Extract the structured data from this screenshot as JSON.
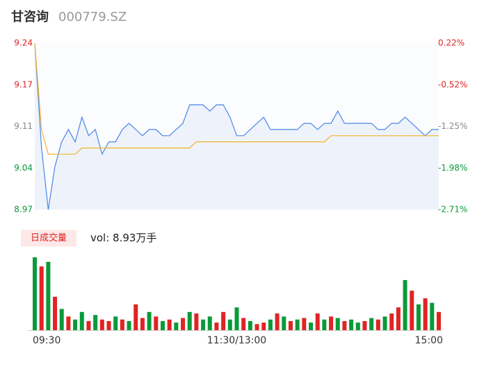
{
  "chart_data": [
    {
      "type": "line",
      "title": "甘咨询",
      "subtitle": "000779.SZ",
      "x": [
        0,
        4,
        8,
        12,
        16,
        20,
        24,
        28,
        32,
        36,
        40,
        44,
        48,
        52,
        56,
        60,
        64,
        68,
        72,
        76,
        80,
        84,
        88,
        92,
        96,
        100,
        104,
        108,
        112,
        116,
        120,
        124,
        128,
        132,
        136,
        140,
        144,
        148,
        152,
        156,
        160,
        164,
        168,
        172,
        176,
        180,
        184,
        188,
        192,
        196,
        200,
        204,
        208,
        212,
        216,
        220,
        224,
        228,
        232,
        236,
        240
      ],
      "xlim": [
        0,
        240
      ],
      "ylim": [
        8.97,
        9.24
      ],
      "yticks": [
        {
          "value": 9.24,
          "label": "9.24"
        },
        {
          "value": 9.1725,
          "label": "9.17"
        },
        {
          "value": 9.105,
          "label": "9.11"
        },
        {
          "value": 9.0375,
          "label": "9.04"
        },
        {
          "value": 8.97,
          "label": "8.97"
        }
      ],
      "y2lim": [
        -2.71,
        0.22
      ],
      "y2ticks": [
        {
          "value": 0.22,
          "label": "0.22%"
        },
        {
          "value": -0.5125,
          "label": "-0.52%"
        },
        {
          "value": -1.245,
          "label": "-1.25%"
        },
        {
          "value": -1.9775,
          "label": "-1.98%"
        },
        {
          "value": -2.71,
          "label": "-2.71%"
        }
      ],
      "ytick_colors": [
        "#e02424",
        "#e02424",
        "#888888",
        "#0a9a3a",
        "#0a9a3a"
      ],
      "area_color": "#eef3fb",
      "series": [
        {
          "color": "#4a86e8",
          "values": [
            9.24,
            9.07,
            8.97,
            9.04,
            9.08,
            9.1,
            9.08,
            9.12,
            9.09,
            9.1,
            9.06,
            9.08,
            9.08,
            9.1,
            9.11,
            9.1,
            9.09,
            9.1,
            9.1,
            9.09,
            9.09,
            9.1,
            9.11,
            9.14,
            9.14,
            9.14,
            9.13,
            9.14,
            9.14,
            9.12,
            9.09,
            9.09,
            9.1,
            9.11,
            9.12,
            9.1,
            9.1,
            9.1,
            9.1,
            9.1,
            9.11,
            9.11,
            9.1,
            9.11,
            9.11,
            9.13,
            9.11,
            9.11,
            9.11,
            9.11,
            9.11,
            9.1,
            9.1,
            9.11,
            9.11,
            9.12,
            9.11,
            9.1,
            9.09,
            9.1,
            9.1
          ]
        },
        {
          "color": "#f0b429",
          "values": [
            9.24,
            9.1,
            9.06,
            9.06,
            9.06,
            9.06,
            9.06,
            9.07,
            9.07,
            9.07,
            9.07,
            9.07,
            9.07,
            9.07,
            9.07,
            9.07,
            9.07,
            9.07,
            9.07,
            9.07,
            9.07,
            9.07,
            9.07,
            9.07,
            9.08,
            9.08,
            9.08,
            9.08,
            9.08,
            9.08,
            9.08,
            9.08,
            9.08,
            9.08,
            9.08,
            9.08,
            9.08,
            9.08,
            9.08,
            9.08,
            9.08,
            9.08,
            9.08,
            9.08,
            9.09,
            9.09,
            9.09,
            9.09,
            9.09,
            9.09,
            9.09,
            9.09,
            9.09,
            9.09,
            9.09,
            9.09,
            9.09,
            9.09,
            9.09,
            9.09,
            9.09
          ]
        }
      ]
    },
    {
      "type": "bar",
      "title": "日成交量",
      "annotation": "vol: 8.93万手",
      "x": [
        0,
        4,
        8,
        12,
        16,
        20,
        24,
        28,
        32,
        36,
        40,
        44,
        48,
        52,
        56,
        60,
        64,
        68,
        72,
        76,
        80,
        84,
        88,
        92,
        96,
        100,
        104,
        108,
        112,
        116,
        120,
        124,
        128,
        132,
        136,
        140,
        144,
        148,
        152,
        156,
        160,
        164,
        168,
        172,
        176,
        180,
        184,
        188,
        192,
        196,
        200,
        204,
        208,
        212,
        216,
        220,
        224,
        228,
        232,
        236,
        240
      ],
      "xlim": [
        0,
        240
      ],
      "xticks": [
        {
          "value": 0,
          "label": "09:30"
        },
        {
          "value": 120,
          "label": "11:30/13:00"
        },
        {
          "value": 240,
          "label": "15:00"
        }
      ],
      "ylim": [
        0,
        5000
      ],
      "values": [
        4800,
        4200,
        4500,
        2200,
        1400,
        900,
        700,
        1200,
        600,
        1000,
        700,
        600,
        900,
        700,
        600,
        1700,
        800,
        1200,
        900,
        600,
        700,
        500,
        800,
        1200,
        1100,
        700,
        900,
        500,
        1200,
        700,
        1500,
        800,
        600,
        400,
        500,
        700,
        1100,
        900,
        600,
        700,
        800,
        500,
        1100,
        700,
        900,
        800,
        600,
        700,
        500,
        600,
        800,
        700,
        900,
        1100,
        1500,
        3300,
        2600,
        1700,
        2100,
        1800,
        1200
      ],
      "colors": [
        "#0a9a3a",
        "#e02424",
        "#0a9a3a",
        "#e02424",
        "#0a9a3a",
        "#e02424",
        "#0a9a3a",
        "#0a9a3a",
        "#e02424",
        "#0a9a3a",
        "#e02424",
        "#e02424",
        "#0a9a3a",
        "#e02424",
        "#0a9a3a",
        "#e02424",
        "#e02424",
        "#0a9a3a",
        "#e02424",
        "#0a9a3a",
        "#e02424",
        "#0a9a3a",
        "#e02424",
        "#0a9a3a",
        "#e02424",
        "#0a9a3a",
        "#0a9a3a",
        "#e02424",
        "#e02424",
        "#0a9a3a",
        "#0a9a3a",
        "#e02424",
        "#0a9a3a",
        "#e02424",
        "#e02424",
        "#0a9a3a",
        "#e02424",
        "#0a9a3a",
        "#e02424",
        "#0a9a3a",
        "#e02424",
        "#0a9a3a",
        "#e02424",
        "#0a9a3a",
        "#e02424",
        "#0a9a3a",
        "#e02424",
        "#0a9a3a",
        "#0a9a3a",
        "#e02424",
        "#0a9a3a",
        "#e02424",
        "#0a9a3a",
        "#e02424",
        "#e02424",
        "#0a9a3a",
        "#e02424",
        "#0a9a3a",
        "#e02424",
        "#0a9a3a",
        "#e02424"
      ],
      "label_color": "#e02424",
      "label_background": "#fde8e8"
    }
  ]
}
